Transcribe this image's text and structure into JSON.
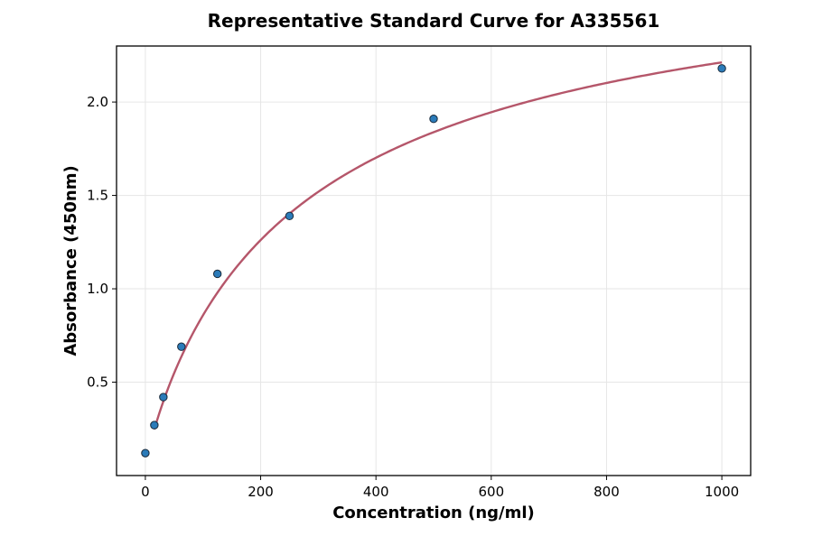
{
  "chart_data": {
    "type": "scatter",
    "title": "Representative Standard Curve for A335561",
    "xlabel": "Concentration (ng/ml)",
    "ylabel": "Absorbance (450nm)",
    "xlim": [
      -50,
      1050
    ],
    "ylim": [
      0.0,
      2.3
    ],
    "xticks": [
      0,
      200,
      400,
      600,
      800,
      1000
    ],
    "yticks": [
      0.5,
      1.0,
      1.5,
      2.0
    ],
    "xtick_labels": [
      "0",
      "200",
      "400",
      "600",
      "800",
      "1000"
    ],
    "ytick_labels": [
      "0.5",
      "1.0",
      "1.5",
      "2.0"
    ],
    "grid": true,
    "series": [
      {
        "type": "scatter",
        "x": [
          0,
          15.6,
          31.25,
          62.5,
          125,
          250,
          500,
          1000
        ],
        "y": [
          0.12,
          0.27,
          0.42,
          0.69,
          1.08,
          1.39,
          1.91,
          2.18
        ],
        "color": "#2b7bb9"
      },
      {
        "type": "line",
        "curve": "fitted",
        "x_range": [
          15.6,
          1000
        ],
        "color": "#b5566a"
      }
    ]
  }
}
